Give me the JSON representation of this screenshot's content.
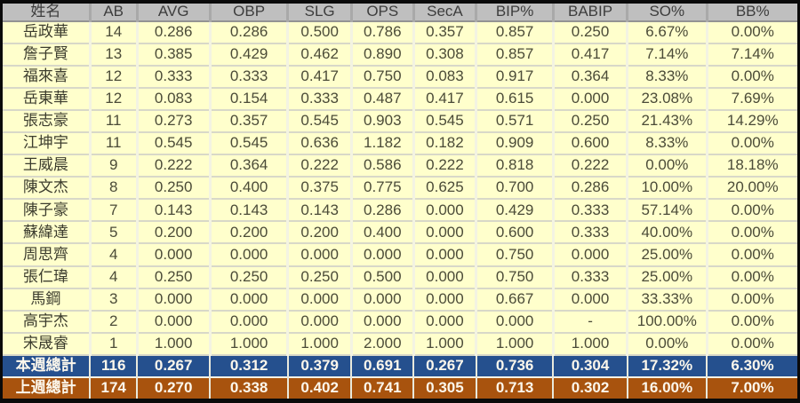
{
  "colors": {
    "header_bg": "#bfbfbf",
    "row_bg": "#ffffcc",
    "this_week_bg": "#25508e",
    "last_week_bg": "#a8530e",
    "outer_border": "#0a0a0a"
  },
  "chart_data": {
    "type": "table",
    "columns": [
      "姓名",
      "AB",
      "AVG",
      "OBP",
      "SLG",
      "OPS",
      "SecA",
      "BIP%",
      "BABIP",
      "SO%",
      "BB%"
    ],
    "rows": [
      [
        "岳政華",
        "14",
        "0.286",
        "0.286",
        "0.500",
        "0.786",
        "0.357",
        "0.857",
        "0.250",
        "6.67%",
        "0.00%"
      ],
      [
        "詹子賢",
        "13",
        "0.385",
        "0.429",
        "0.462",
        "0.890",
        "0.308",
        "0.857",
        "0.417",
        "7.14%",
        "7.14%"
      ],
      [
        "福來喜",
        "12",
        "0.333",
        "0.333",
        "0.417",
        "0.750",
        "0.083",
        "0.917",
        "0.364",
        "8.33%",
        "0.00%"
      ],
      [
        "岳東華",
        "12",
        "0.083",
        "0.154",
        "0.333",
        "0.487",
        "0.417",
        "0.615",
        "0.000",
        "23.08%",
        "7.69%"
      ],
      [
        "張志豪",
        "11",
        "0.273",
        "0.357",
        "0.545",
        "0.903",
        "0.545",
        "0.571",
        "0.250",
        "21.43%",
        "14.29%"
      ],
      [
        "江坤宇",
        "11",
        "0.545",
        "0.545",
        "0.636",
        "1.182",
        "0.182",
        "0.909",
        "0.600",
        "8.33%",
        "0.00%"
      ],
      [
        "王威晨",
        "9",
        "0.222",
        "0.364",
        "0.222",
        "0.586",
        "0.222",
        "0.818",
        "0.222",
        "0.00%",
        "18.18%"
      ],
      [
        "陳文杰",
        "8",
        "0.250",
        "0.400",
        "0.375",
        "0.775",
        "0.625",
        "0.700",
        "0.286",
        "10.00%",
        "20.00%"
      ],
      [
        "陳子豪",
        "7",
        "0.143",
        "0.143",
        "0.143",
        "0.286",
        "0.000",
        "0.429",
        "0.333",
        "57.14%",
        "0.00%"
      ],
      [
        "蘇緯達",
        "5",
        "0.200",
        "0.200",
        "0.200",
        "0.400",
        "0.000",
        "0.600",
        "0.333",
        "40.00%",
        "0.00%"
      ],
      [
        "周思齊",
        "4",
        "0.000",
        "0.000",
        "0.000",
        "0.000",
        "0.000",
        "0.750",
        "0.000",
        "25.00%",
        "0.00%"
      ],
      [
        "張仁瑋",
        "4",
        "0.250",
        "0.250",
        "0.250",
        "0.500",
        "0.000",
        "0.750",
        "0.333",
        "25.00%",
        "0.00%"
      ],
      [
        "馬鋼",
        "3",
        "0.000",
        "0.000",
        "0.000",
        "0.000",
        "0.000",
        "0.667",
        "0.000",
        "33.33%",
        "0.00%"
      ],
      [
        "高宇杰",
        "2",
        "0.000",
        "0.000",
        "0.000",
        "0.000",
        "0.000",
        "0.000",
        "-",
        "100.00%",
        "0.00%"
      ],
      [
        "宋晟睿",
        "1",
        "1.000",
        "1.000",
        "1.000",
        "2.000",
        "1.000",
        "1.000",
        "1.000",
        "0.00%",
        "0.00%"
      ]
    ],
    "summary_rows": [
      {
        "label": "本週總計",
        "values": [
          "116",
          "0.267",
          "0.312",
          "0.379",
          "0.691",
          "0.267",
          "0.736",
          "0.304",
          "17.32%",
          "6.30%"
        ],
        "bg": "#25508e"
      },
      {
        "label": "上週總計",
        "values": [
          "174",
          "0.270",
          "0.338",
          "0.402",
          "0.741",
          "0.305",
          "0.713",
          "0.302",
          "16.00%",
          "7.00%"
        ],
        "bg": "#a8530e"
      }
    ]
  }
}
